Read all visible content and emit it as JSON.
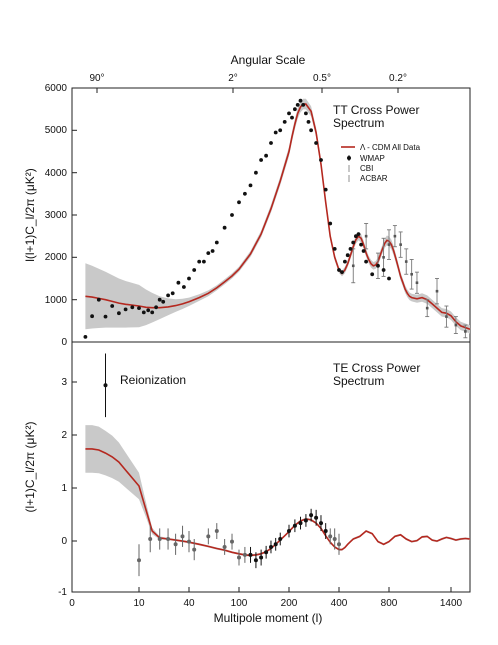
{
  "chart_data": [
    {
      "type": "line",
      "panel": "TT",
      "title": "TT Cross Power",
      "title_line2": "Spectrum",
      "top_axis_title": "Angular Scale",
      "top_ticks": [
        {
          "label": "90°",
          "ell": 2
        },
        {
          "label": "2°",
          "ell": 90
        },
        {
          "label": "0.5°",
          "ell": 360
        },
        {
          "label": "0.2°",
          "ell": 900
        }
      ],
      "ylabel": "l(l+1)C_l/2π (μK²)",
      "ylim": [
        0,
        6000
      ],
      "yticks": [
        "0",
        "1000",
        "2000",
        "3000",
        "4000",
        "5000",
        "6000"
      ],
      "legend": [
        {
          "label": "Λ - CDM All Data",
          "kind": "line"
        },
        {
          "label": "WMAP",
          "kind": "dot"
        },
        {
          "label": "CBI",
          "kind": "errorbar"
        },
        {
          "label": "ACBAR",
          "kind": "errorbar"
        }
      ],
      "model": {
        "name": "Λ - CDM All Data",
        "x": [
          2,
          3,
          4,
          5,
          6,
          7,
          8,
          10,
          13,
          16,
          20,
          25,
          30,
          35,
          40,
          50,
          60,
          70,
          80,
          90,
          100,
          120,
          140,
          160,
          180,
          200,
          210,
          220,
          230,
          240,
          250,
          260,
          280,
          300,
          320,
          340,
          360,
          380,
          400,
          420,
          440,
          460,
          480,
          500,
          520,
          540,
          560,
          580,
          600,
          620,
          640,
          660,
          680,
          700,
          720,
          740,
          760,
          780,
          800,
          820,
          840,
          860,
          880,
          900,
          920,
          940,
          960,
          980,
          1000,
          1050,
          1100,
          1150,
          1200,
          1250,
          1300,
          1350,
          1400,
          1450,
          1500,
          1600
        ],
        "y": [
          1080,
          1060,
          1030,
          1000,
          960,
          920,
          890,
          850,
          820,
          810,
          810,
          830,
          860,
          900,
          950,
          1050,
          1150,
          1280,
          1420,
          1560,
          1720,
          2080,
          2550,
          3150,
          3800,
          4500,
          4850,
          5150,
          5400,
          5550,
          5620,
          5620,
          5450,
          4950,
          4200,
          3300,
          2500,
          2000,
          1700,
          1620,
          1700,
          1850,
          2050,
          2250,
          2420,
          2500,
          2450,
          2300,
          2100,
          1950,
          1850,
          1800,
          1820,
          1900,
          2050,
          2200,
          2330,
          2400,
          2380,
          2300,
          2150,
          1950,
          1750,
          1550,
          1400,
          1250,
          1150,
          1080,
          1050,
          1020,
          1050,
          1000,
          900,
          800,
          700,
          680,
          620,
          480,
          380,
          300
        ],
        "band_halfwidth": [
          780,
          740,
          700,
          660,
          620,
          580,
          550,
          500,
          420,
          350,
          270,
          200,
          150,
          120,
          100,
          80,
          70,
          60,
          60,
          60,
          60,
          70,
          80,
          90,
          100,
          110,
          115,
          120,
          125,
          125,
          125,
          125,
          120,
          110,
          100,
          90,
          80,
          75,
          70,
          70,
          75,
          80,
          85,
          90,
          95,
          100,
          100,
          95,
          90,
          90,
          90,
          90,
          90,
          95,
          100,
          105,
          110,
          115,
          115,
          115,
          110,
          105,
          100,
          95,
          90,
          90,
          90,
          90,
          90,
          95,
          100,
          100,
          100,
          100,
          100,
          100,
          100,
          100,
          100,
          100
        ]
      },
      "wmap": {
        "name": "WMAP",
        "x": [
          2,
          3,
          4,
          5,
          6,
          7,
          8,
          9,
          10,
          12,
          14,
          16,
          18,
          20,
          22,
          25,
          28,
          32,
          36,
          40,
          45,
          50,
          55,
          60,
          65,
          70,
          80,
          90,
          100,
          110,
          120,
          130,
          140,
          150,
          160,
          170,
          180,
          190,
          200,
          210,
          220,
          230,
          240,
          250,
          260,
          270,
          280,
          300,
          320,
          340,
          360,
          380,
          400,
          420,
          440,
          460,
          480,
          500,
          520,
          540,
          560,
          580,
          600,
          650,
          700,
          750,
          800
        ],
        "y": [
          120,
          610,
          1000,
          600,
          850,
          680,
          770,
          820,
          800,
          700,
          750,
          700,
          820,
          1000,
          950,
          1100,
          1150,
          1400,
          1300,
          1500,
          1700,
          1900,
          1900,
          2100,
          2150,
          2350,
          2700,
          3000,
          3300,
          3500,
          3700,
          4000,
          4300,
          4400,
          4700,
          4950,
          5000,
          5200,
          5400,
          5300,
          5500,
          5600,
          5700,
          5600,
          5400,
          5200,
          5000,
          4700,
          4300,
          3600,
          2800,
          2200,
          1700,
          1650,
          1900,
          2050,
          2200,
          2350,
          2500,
          2550,
          2300,
          2150,
          1900,
          1600,
          1800,
          1700,
          1500
        ]
      },
      "high_ell_errorbars": {
        "name": "CBI / ACBAR",
        "x": [
          500,
          600,
          700,
          750,
          800,
          850,
          900,
          950,
          1000,
          1050,
          1150,
          1250,
          1350,
          1450,
          1550
        ],
        "y": [
          1800,
          2500,
          1800,
          2000,
          2300,
          2500,
          2300,
          1900,
          1600,
          1400,
          800,
          1200,
          600,
          400,
          250
        ],
        "err": [
          400,
          300,
          300,
          450,
          350,
          250,
          300,
          300,
          350,
          250,
          200,
          300,
          250,
          200,
          150
        ]
      }
    },
    {
      "type": "line",
      "panel": "TE",
      "title": "TE Cross Power",
      "title_line2": "Spectrum",
      "annotation": "Reionization",
      "ylabel": "(l+1)C_l/2π (μK²)",
      "ylim": [
        -1,
        4
      ],
      "yticks": [
        "-1",
        "0",
        "1",
        "2",
        "3"
      ],
      "xlabel": "Multipole moment (l)",
      "xticks": [
        {
          "label": "0",
          "ell": 0
        },
        {
          "label": "10",
          "ell": 10
        },
        {
          "label": "40",
          "ell": 40
        },
        {
          "label": "100",
          "ell": 100
        },
        {
          "label": "200",
          "ell": 200
        },
        {
          "label": "400",
          "ell": 400
        },
        {
          "label": "800",
          "ell": 800
        },
        {
          "label": "1400",
          "ell": 1400
        }
      ],
      "model": {
        "x": [
          2,
          3,
          4,
          5,
          6,
          7,
          8,
          10,
          13,
          16,
          20,
          25,
          30,
          35,
          40,
          50,
          60,
          70,
          80,
          90,
          100,
          110,
          120,
          130,
          140,
          150,
          160,
          170,
          180,
          190,
          200,
          220,
          240,
          260,
          280,
          300,
          320,
          340,
          360,
          380,
          400,
          420,
          440,
          460,
          480,
          500,
          550,
          600,
          650,
          700,
          750,
          800,
          850,
          900,
          950,
          1000,
          1050,
          1100,
          1150,
          1200,
          1250,
          1300,
          1350,
          1400,
          1450,
          1500,
          1550,
          1600
        ],
        "y": [
          1.7,
          1.7,
          1.68,
          1.62,
          1.55,
          1.45,
          1.3,
          1.0,
          0.55,
          0.15,
          0.02,
          0.0,
          -0.02,
          -0.04,
          -0.06,
          -0.1,
          -0.14,
          -0.18,
          -0.21,
          -0.25,
          -0.28,
          -0.3,
          -0.31,
          -0.3,
          -0.28,
          -0.24,
          -0.18,
          -0.1,
          -0.02,
          0.06,
          0.14,
          0.26,
          0.34,
          0.38,
          0.36,
          0.3,
          0.2,
          0.06,
          -0.06,
          -0.15,
          -0.2,
          -0.2,
          -0.16,
          -0.1,
          -0.05,
          0.0,
          0.05,
          0.15,
          0.1,
          -0.05,
          -0.1,
          -0.05,
          0.05,
          0.08,
          0.0,
          -0.05,
          -0.03,
          0.04,
          0.05,
          -0.02,
          -0.04,
          0.0,
          0.03,
          0.01,
          -0.02,
          0.0,
          0.01,
          0.0
        ],
        "band_halfwidth": [
          0.45,
          0.45,
          0.44,
          0.42,
          0.4,
          0.37,
          0.33,
          0.25,
          0.14,
          0.06,
          0.03,
          0.02,
          0.02,
          0.02,
          0.02,
          0.02,
          0.02,
          0.02,
          0.02,
          0.02,
          0.02,
          0.02,
          0.02,
          0.02,
          0.02,
          0.02,
          0.02,
          0.02,
          0.02,
          0.02,
          0.02,
          0.02,
          0.02,
          0.02,
          0.02,
          0.02,
          0.02,
          0.02,
          0.02,
          0.02,
          0.02,
          0.02,
          0.02,
          0.02,
          0.02,
          0.02,
          0.02,
          0.02,
          0.02,
          0.02,
          0.02,
          0.02,
          0.02,
          0.02,
          0.02,
          0.02,
          0.02,
          0.02,
          0.02,
          0.02,
          0.02,
          0.02,
          0.02,
          0.02,
          0.02,
          0.02,
          0.02,
          0.02
        ]
      },
      "data": {
        "x": [
          5,
          10,
          15,
          20,
          25,
          30,
          35,
          40,
          45,
          60,
          70,
          80,
          90,
          100,
          110,
          120,
          130,
          140,
          150,
          160,
          170,
          180,
          200,
          220,
          240,
          260,
          280,
          300,
          320,
          340,
          360,
          380,
          400
        ],
        "y": [
          2.9,
          -0.4,
          0.0,
          0.0,
          0.0,
          -0.1,
          0.05,
          -0.05,
          -0.2,
          0.05,
          0.15,
          -0.15,
          -0.05,
          -0.35,
          -0.3,
          -0.3,
          -0.4,
          -0.35,
          -0.25,
          -0.15,
          -0.1,
          0.0,
          0.15,
          0.25,
          0.3,
          0.35,
          0.45,
          0.4,
          0.3,
          0.15,
          0.05,
          0.0,
          -0.1
        ],
        "err": [
          0.6,
          0.3,
          0.25,
          0.2,
          0.2,
          0.2,
          0.2,
          0.2,
          0.2,
          0.15,
          0.15,
          0.15,
          0.15,
          0.15,
          0.15,
          0.15,
          0.15,
          0.15,
          0.12,
          0.12,
          0.12,
          0.12,
          0.12,
          0.12,
          0.12,
          0.12,
          0.12,
          0.15,
          0.15,
          0.15,
          0.15,
          0.2,
          0.2
        ]
      }
    }
  ]
}
